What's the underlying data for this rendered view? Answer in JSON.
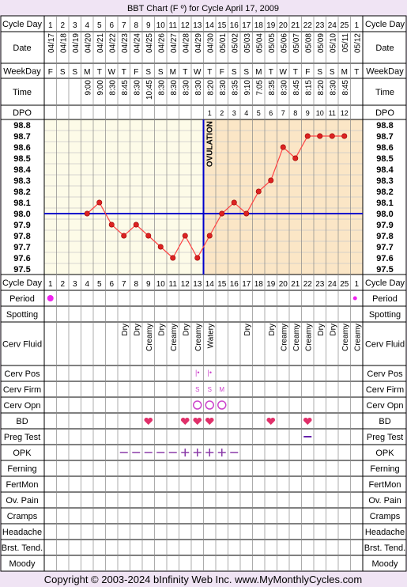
{
  "title": "BBT Chart (F º) for Cycle April 17, 2009",
  "footer": "Copyright © 2003-2024 bInfinity Web Inc.     www.MyMonthlyCycles.com",
  "row_labels": {
    "cycle_day": "Cycle Day",
    "date": "Date",
    "weekday": "WeekDay",
    "time": "Time",
    "dpo": "DPO",
    "period": "Period",
    "spotting": "Spotting",
    "cerv_fluid": "Cerv Fluid",
    "cerv_pos": "Cerv Pos",
    "cerv_firm": "Cerv Firm",
    "cerv_opn": "Cerv Opn",
    "bd": "BD",
    "preg_test": "Preg Test",
    "opk": "OPK",
    "ferning": "Ferning",
    "fertmon": "FertMon",
    "ov_pain": "Ov. Pain",
    "cramps": "Cramps",
    "headache": "Headache",
    "brst_tend": "Brst. Tend.",
    "moody": "Moody"
  },
  "ovulation_label": "OVULATION",
  "days": [
    {
      "cd": "1",
      "date": "04/17",
      "wd": "F",
      "time": "",
      "dpo": "",
      "temp": null,
      "period": true,
      "fluid": "",
      "pos": "",
      "firm": "",
      "opn": false,
      "bd": false,
      "preg": false,
      "opk": ""
    },
    {
      "cd": "2",
      "date": "04/18",
      "wd": "S",
      "time": "",
      "dpo": "",
      "temp": null,
      "period": false,
      "fluid": "",
      "pos": "",
      "firm": "",
      "opn": false,
      "bd": false,
      "preg": false,
      "opk": ""
    },
    {
      "cd": "3",
      "date": "04/19",
      "wd": "S",
      "time": "",
      "dpo": "",
      "temp": null,
      "period": false,
      "fluid": "",
      "pos": "",
      "firm": "",
      "opn": false,
      "bd": false,
      "preg": false,
      "opk": ""
    },
    {
      "cd": "4",
      "date": "04/20",
      "wd": "M",
      "time": "9:00",
      "dpo": "",
      "temp": 98.0,
      "period": false,
      "fluid": "",
      "pos": "",
      "firm": "",
      "opn": false,
      "bd": false,
      "preg": false,
      "opk": ""
    },
    {
      "cd": "5",
      "date": "04/21",
      "wd": "T",
      "time": "9:00",
      "dpo": "",
      "temp": 98.1,
      "period": false,
      "fluid": "",
      "pos": "",
      "firm": "",
      "opn": false,
      "bd": false,
      "preg": false,
      "opk": ""
    },
    {
      "cd": "6",
      "date": "04/22",
      "wd": "W",
      "time": "8:30",
      "dpo": "",
      "temp": 97.9,
      "period": false,
      "fluid": "",
      "pos": "",
      "firm": "",
      "opn": false,
      "bd": false,
      "preg": false,
      "opk": ""
    },
    {
      "cd": "7",
      "date": "04/23",
      "wd": "T",
      "time": "8:45",
      "dpo": "",
      "temp": 97.8,
      "period": false,
      "fluid": "Dry",
      "pos": "",
      "firm": "",
      "opn": false,
      "bd": false,
      "preg": false,
      "opk": "neg"
    },
    {
      "cd": "8",
      "date": "04/24",
      "wd": "F",
      "time": "8:30",
      "dpo": "",
      "temp": 97.9,
      "period": false,
      "fluid": "Dry",
      "pos": "",
      "firm": "",
      "opn": false,
      "bd": false,
      "preg": false,
      "opk": "neg"
    },
    {
      "cd": "9",
      "date": "04/25",
      "wd": "S",
      "time": "10:45",
      "dpo": "",
      "temp": 97.8,
      "period": false,
      "fluid": "Creamy",
      "pos": "",
      "firm": "",
      "opn": false,
      "bd": true,
      "preg": false,
      "opk": "neg"
    },
    {
      "cd": "10",
      "date": "04/26",
      "wd": "S",
      "time": "8:30",
      "dpo": "",
      "temp": 97.7,
      "period": false,
      "fluid": "Dry",
      "pos": "",
      "firm": "",
      "opn": false,
      "bd": false,
      "preg": false,
      "opk": "neg"
    },
    {
      "cd": "11",
      "date": "04/27",
      "wd": "M",
      "time": "8:30",
      "dpo": "",
      "temp": 97.6,
      "period": false,
      "fluid": "Creamy",
      "pos": "",
      "firm": "",
      "opn": false,
      "bd": false,
      "preg": false,
      "opk": "neg"
    },
    {
      "cd": "12",
      "date": "04/28",
      "wd": "T",
      "time": "8:30",
      "dpo": "",
      "temp": 97.8,
      "period": false,
      "fluid": "Dry",
      "pos": "",
      "firm": "",
      "opn": false,
      "bd": true,
      "preg": false,
      "opk": "pos"
    },
    {
      "cd": "13",
      "date": "04/29",
      "wd": "W",
      "time": "8:30",
      "dpo": "",
      "temp": 97.6,
      "period": false,
      "fluid": "Creamy",
      "pos": "|•",
      "firm": "S",
      "opn": true,
      "bd": true,
      "preg": false,
      "opk": "pos"
    },
    {
      "cd": "14",
      "date": "04/30",
      "wd": "T",
      "time": "8:20",
      "dpo": "1",
      "temp": 97.8,
      "period": false,
      "fluid": "Watery",
      "pos": "|•",
      "firm": "S",
      "opn": true,
      "bd": true,
      "preg": false,
      "opk": "pos"
    },
    {
      "cd": "15",
      "date": "05/01",
      "wd": "F",
      "time": "8:30",
      "dpo": "2",
      "temp": 98.0,
      "period": false,
      "fluid": "",
      "pos": "",
      "firm": "M",
      "opn": true,
      "bd": false,
      "preg": false,
      "opk": "pos"
    },
    {
      "cd": "16",
      "date": "05/02",
      "wd": "S",
      "time": "8:35",
      "dpo": "3",
      "temp": 98.1,
      "period": false,
      "fluid": "",
      "pos": "",
      "firm": "",
      "opn": false,
      "bd": false,
      "preg": false,
      "opk": "neg"
    },
    {
      "cd": "17",
      "date": "05/03",
      "wd": "S",
      "time": "9:10",
      "dpo": "4",
      "temp": 98.0,
      "period": false,
      "fluid": "Dry",
      "pos": "",
      "firm": "",
      "opn": false,
      "bd": false,
      "preg": false,
      "opk": ""
    },
    {
      "cd": "18",
      "date": "05/04",
      "wd": "M",
      "time": "7:05",
      "dpo": "5",
      "temp": 98.2,
      "period": false,
      "fluid": "",
      "pos": "",
      "firm": "",
      "opn": false,
      "bd": false,
      "preg": false,
      "opk": ""
    },
    {
      "cd": "19",
      "date": "05/05",
      "wd": "T",
      "time": "8:35",
      "dpo": "6",
      "temp": 98.3,
      "period": false,
      "fluid": "Dry",
      "pos": "",
      "firm": "",
      "opn": false,
      "bd": true,
      "preg": false,
      "opk": ""
    },
    {
      "cd": "20",
      "date": "05/06",
      "wd": "W",
      "time": "8:30",
      "dpo": "7",
      "temp": 98.6,
      "period": false,
      "fluid": "Creamy",
      "pos": "",
      "firm": "",
      "opn": false,
      "bd": false,
      "preg": false,
      "opk": ""
    },
    {
      "cd": "21",
      "date": "05/07",
      "wd": "T",
      "time": "8:45",
      "dpo": "8",
      "temp": 98.5,
      "period": false,
      "fluid": "Creamy",
      "pos": "",
      "firm": "",
      "opn": false,
      "bd": false,
      "preg": false,
      "opk": ""
    },
    {
      "cd": "22",
      "date": "05/08",
      "wd": "F",
      "time": "8:15",
      "dpo": "9",
      "temp": 98.7,
      "period": false,
      "fluid": "Creamy",
      "pos": "",
      "firm": "",
      "opn": false,
      "bd": true,
      "preg": true,
      "opk": ""
    },
    {
      "cd": "23",
      "date": "05/09",
      "wd": "S",
      "time": "8:20",
      "dpo": "10",
      "temp": 98.7,
      "period": false,
      "fluid": "Dry",
      "pos": "",
      "firm": "",
      "opn": false,
      "bd": false,
      "preg": false,
      "opk": ""
    },
    {
      "cd": "24",
      "date": "05/10",
      "wd": "S",
      "time": "8:30",
      "dpo": "11",
      "temp": 98.7,
      "period": false,
      "fluid": "Dry",
      "pos": "",
      "firm": "",
      "opn": false,
      "bd": false,
      "preg": false,
      "opk": ""
    },
    {
      "cd": "25",
      "date": "05/11",
      "wd": "M",
      "time": "8:45",
      "dpo": "12",
      "temp": 98.7,
      "period": false,
      "fluid": "Creamy",
      "pos": "",
      "firm": "",
      "opn": false,
      "bd": false,
      "preg": false,
      "opk": ""
    },
    {
      "cd": "1",
      "date": "05/12",
      "wd": "T",
      "time": "",
      "dpo": "",
      "temp": null,
      "period": true,
      "fluid": "Creamy",
      "pos": "",
      "firm": "",
      "opn": false,
      "bd": false,
      "preg": false,
      "opk": ""
    }
  ],
  "chart_data": {
    "type": "line",
    "title": "BBT Chart (F º) for Cycle April 17, 2009",
    "x": [
      "1",
      "2",
      "3",
      "4",
      "5",
      "6",
      "7",
      "8",
      "9",
      "10",
      "11",
      "12",
      "13",
      "14",
      "15",
      "16",
      "17",
      "18",
      "19",
      "20",
      "21",
      "22",
      "23",
      "24",
      "25",
      "1"
    ],
    "series": [
      {
        "values": [
          null,
          null,
          null,
          98.0,
          98.1,
          97.9,
          97.8,
          97.9,
          97.8,
          97.7,
          97.6,
          97.8,
          97.6,
          97.8,
          98.0,
          98.1,
          98.0,
          98.2,
          98.3,
          98.6,
          98.5,
          98.7,
          98.7,
          98.7,
          98.7,
          null
        ]
      }
    ],
    "y_ticks": [
      "98.8",
      "98.7",
      "98.6",
      "98.5",
      "98.4",
      "98.3",
      "98.2",
      "98.1",
      "98.0",
      "97.9",
      "97.8",
      "97.7",
      "97.6",
      "97.5"
    ],
    "ylim": [
      97.5,
      98.8
    ],
    "coverline": 98.0,
    "ovulation_day": "13",
    "grid": true,
    "colors": {
      "line": "#ff4444",
      "marker_fill": "#dd2222",
      "coverline": "#0000cc",
      "ovulation": "#0000cc",
      "luteal_bg": "#fbe6c6",
      "follicular_bg": "#fdfbe8",
      "frame_bg": "#f0e4f4",
      "heart": "#e0306a",
      "opk": "#8a3aa8",
      "period": "#ee22ee",
      "pos": "#cc44cc",
      "preg": "#6622aa"
    }
  }
}
